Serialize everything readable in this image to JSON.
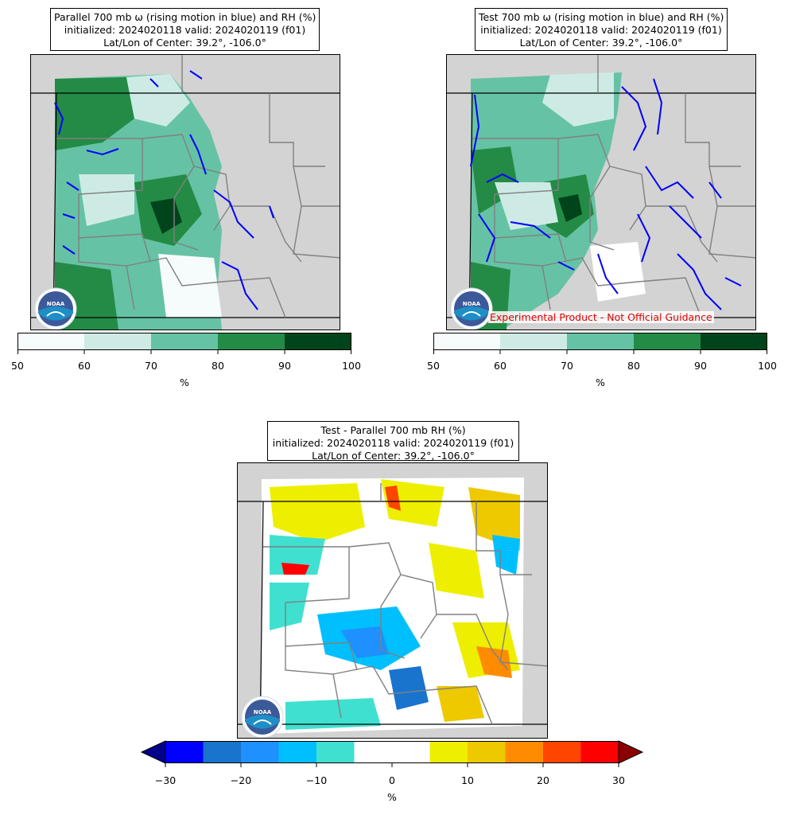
{
  "panels": [
    {
      "title_line1": "Parallel 700 mb ω (rising motion in blue) and RH (%)",
      "title_line2": "initialized: 2024020118 valid: 2024020119 (f01)",
      "title_line3": "Lat/Lon of Center: 39.2°, -106.0°",
      "overlay_label": ""
    },
    {
      "title_line1": "Test 700 mb ω (rising motion in blue) and RH (%)",
      "title_line2": "initialized: 2024020118 valid: 2024020119 (f01)",
      "title_line3": "Lat/Lon of Center: 39.2°, -106.0°",
      "overlay_label": "Experimental Product - Not Official Guidance"
    },
    {
      "title_line1": "Test - Parallel 700 mb RH (%)",
      "title_line2": "initialized: 2024020118 valid: 2024020119 (f01)",
      "title_line3": "Lat/Lon of Center: 39.2°, -106.0°",
      "overlay_label": ""
    }
  ],
  "logo_text": "NOAA",
  "rh_colorbar": {
    "ticks": [
      "50",
      "60",
      "70",
      "80",
      "90",
      "100"
    ],
    "unit": "%",
    "colors": [
      "#f5fcfb",
      "#cdebe4",
      "#66c2a4",
      "#238b45",
      "#00441b"
    ]
  },
  "diff_colorbar": {
    "ticks": [
      "−30",
      "−20",
      "−10",
      "0",
      "10",
      "20",
      "30"
    ],
    "unit": "%",
    "under_color": "#00008b",
    "over_color": "#8b0000",
    "colors": [
      "#0000ff",
      "#1874cd",
      "#1e90ff",
      "#00bfff",
      "#40e0d0",
      "#ffffff",
      "#ffffff",
      "#eeee00",
      "#eec900",
      "#ff8c00",
      "#ff4500",
      "#ff0000"
    ]
  },
  "colors": {
    "land": "#d3d3d3",
    "omega": "#0000ff",
    "county": "#808080"
  }
}
